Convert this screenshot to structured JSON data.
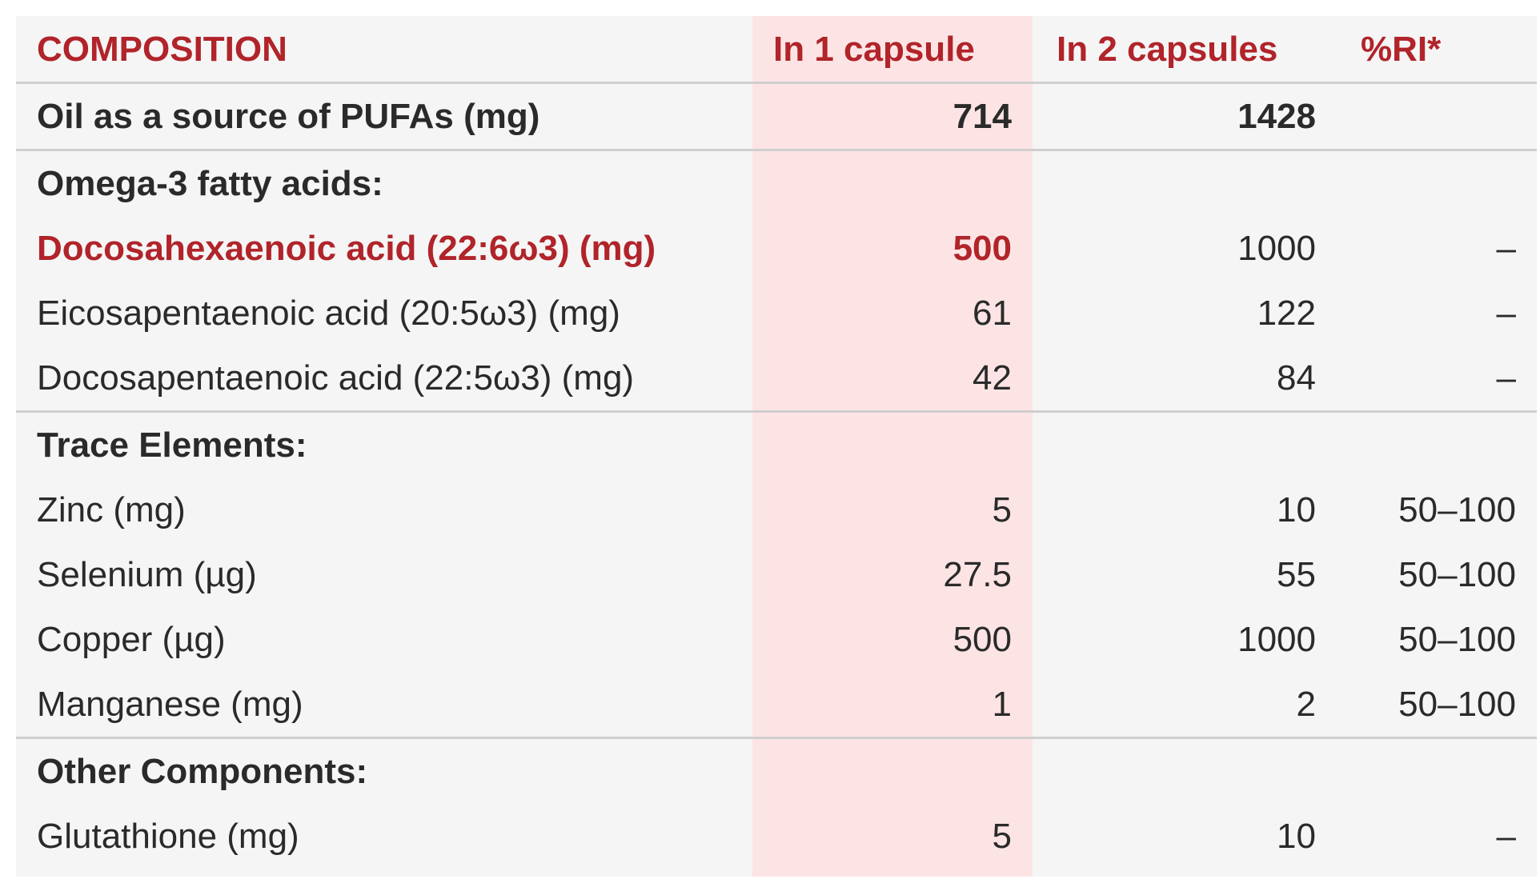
{
  "header": {
    "composition": "COMPOSITION",
    "in_1_capsule": "In 1 capsule",
    "in_2_capsules": "In 2 capsules",
    "ri": "%RI*"
  },
  "rows": [
    {
      "name": "Oil as a source of PUFAs (mg)",
      "one": "714",
      "two": "1428",
      "ri": ""
    },
    {
      "name": "Omega-3 fatty acids:",
      "one": "",
      "two": "",
      "ri": ""
    },
    {
      "name": "Docosahexaenoic acid (22:6ω3) (mg)",
      "one": "500",
      "two": "1000",
      "ri": "–"
    },
    {
      "name": "Eicosapentaenoic acid (20:5ω3) (mg)",
      "one": "61",
      "two": "122",
      "ri": "–"
    },
    {
      "name": "Docosapentaenoic acid (22:5ω3) (mg)",
      "one": "42",
      "two": "84",
      "ri": "–"
    },
    {
      "name": "Trace Elements:",
      "one": "",
      "two": "",
      "ri": ""
    },
    {
      "name": "Zinc (mg)",
      "one": "5",
      "two": "10",
      "ri": "50–100"
    },
    {
      "name": "Selenium (µg)",
      "one": "27.5",
      "two": "55",
      "ri": "50–100"
    },
    {
      "name": "Copper (µg)",
      "one": "500",
      "two": "1000",
      "ri": "50–100"
    },
    {
      "name": "Manganese (mg)",
      "one": "1",
      "two": "2",
      "ri": "50–100"
    },
    {
      "name": "Other Components:",
      "one": "",
      "two": "",
      "ri": ""
    },
    {
      "name": "Glutathione (mg)",
      "one": "5",
      "two": "10",
      "ri": "–"
    }
  ],
  "colors": {
    "accent": "#b0242a",
    "highlight_column": "#fde4e4",
    "background": "#f5f5f5",
    "divider": "#cfcfcf"
  }
}
